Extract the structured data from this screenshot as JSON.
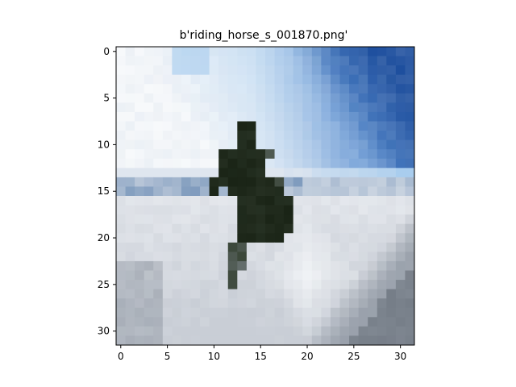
{
  "figure": {
    "title": "b'riding_horse_s_001870.png'"
  },
  "axes": {
    "xlim": [
      -0.5,
      31.5
    ],
    "ylim": [
      31.5,
      -0.5
    ],
    "x_ticks": [
      {
        "value": 0,
        "label": "0"
      },
      {
        "value": 5,
        "label": "5"
      },
      {
        "value": 10,
        "label": "10"
      },
      {
        "value": 15,
        "label": "15"
      },
      {
        "value": 20,
        "label": "20"
      },
      {
        "value": 25,
        "label": "25"
      },
      {
        "value": 30,
        "label": "30"
      }
    ],
    "y_ticks": [
      {
        "value": 0,
        "label": "0"
      },
      {
        "value": 5,
        "label": "5"
      },
      {
        "value": 10,
        "label": "10"
      },
      {
        "value": 15,
        "label": "15"
      },
      {
        "value": 20,
        "label": "20"
      },
      {
        "value": 25,
        "label": "25"
      },
      {
        "value": 30,
        "label": "30"
      }
    ]
  },
  "image": {
    "kind": "pixelated-photo",
    "subject": "riding-horse",
    "resolution": [
      32,
      32
    ],
    "palette": {
      "sky_dark": "#1e4f9e",
      "sky_mid": "#5a8fd0",
      "sky_light": "#a9cdee",
      "cloud_white": "#f7f9fb",
      "haze": "#dfe6ef",
      "snow_light": "#e6e9ee",
      "snow_mid": "#c9ced6",
      "snow_shadow": "#8e96a1",
      "snow_dark": "#6d757f",
      "horse_dark": "#1a2416",
      "horse_mid": "#3a4638",
      "blue_band": "#7f9bbd"
    }
  }
}
